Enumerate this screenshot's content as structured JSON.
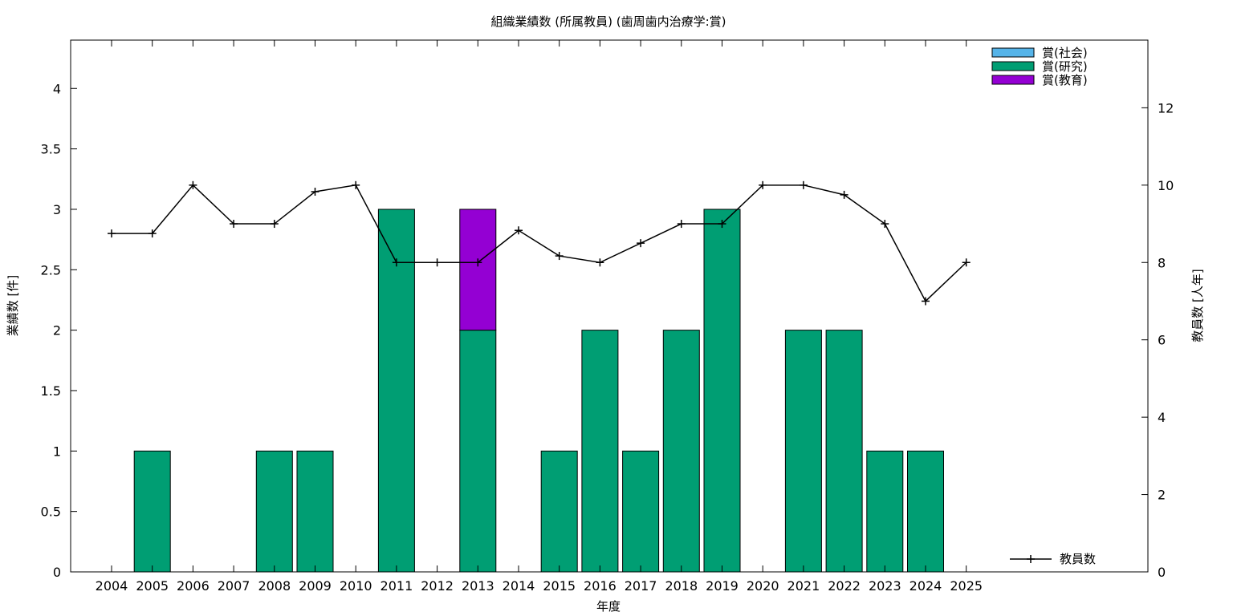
{
  "chart_data": {
    "type": "bar",
    "stacked": true,
    "title": "組織業績数 (所属教員) (歯周歯内治療学:賞)",
    "xlabel": "年度",
    "ylabel": "業績数 [件]",
    "y2label": "教員数 [人年]",
    "categories": [
      "2004",
      "2005",
      "2006",
      "2007",
      "2008",
      "2009",
      "2010",
      "2011",
      "2012",
      "2013",
      "2014",
      "2015",
      "2016",
      "2017",
      "2018",
      "2019",
      "2020",
      "2021",
      "2022",
      "2023",
      "2024",
      "2025"
    ],
    "ylim": [
      0,
      4.4
    ],
    "y_ticks": [
      "0",
      "0.5",
      "1",
      "1.5",
      "2",
      "2.5",
      "3",
      "3.5",
      "4"
    ],
    "y2lim": [
      0,
      13.75
    ],
    "y2_ticks": [
      "0",
      "2",
      "4",
      "6",
      "8",
      "10",
      "12"
    ],
    "series": [
      {
        "name": "賞(社会)",
        "color": "#56b4e9",
        "values": [
          0,
          0,
          0,
          0,
          0,
          0,
          0,
          0,
          0,
          0,
          0,
          0,
          0,
          0,
          0,
          0,
          0,
          0,
          0,
          0,
          0,
          0
        ]
      },
      {
        "name": "賞(研究)",
        "color": "#009e73",
        "values": [
          0,
          1,
          0,
          0,
          1,
          1,
          0,
          3,
          0,
          2,
          0,
          1,
          2,
          1,
          2,
          3,
          0,
          2,
          2,
          1,
          1,
          0
        ]
      },
      {
        "name": "賞(教育)",
        "color": "#9400d3",
        "values": [
          0,
          0,
          0,
          0,
          0,
          0,
          0,
          0,
          0,
          1,
          0,
          0,
          0,
          0,
          0,
          0,
          0,
          0,
          0,
          0,
          0,
          0
        ]
      }
    ],
    "line_series": {
      "name": "教員数",
      "color": "#000000",
      "axis": "y2",
      "values": [
        8.75,
        8.75,
        10,
        9,
        9,
        9.83,
        10,
        8,
        8,
        8,
        8.83,
        8.17,
        8,
        8.5,
        9,
        9,
        10,
        10,
        9.75,
        9,
        7,
        8
      ]
    },
    "legend_position": "top-right",
    "line_legend_position": "bottom-right",
    "grid": false
  }
}
